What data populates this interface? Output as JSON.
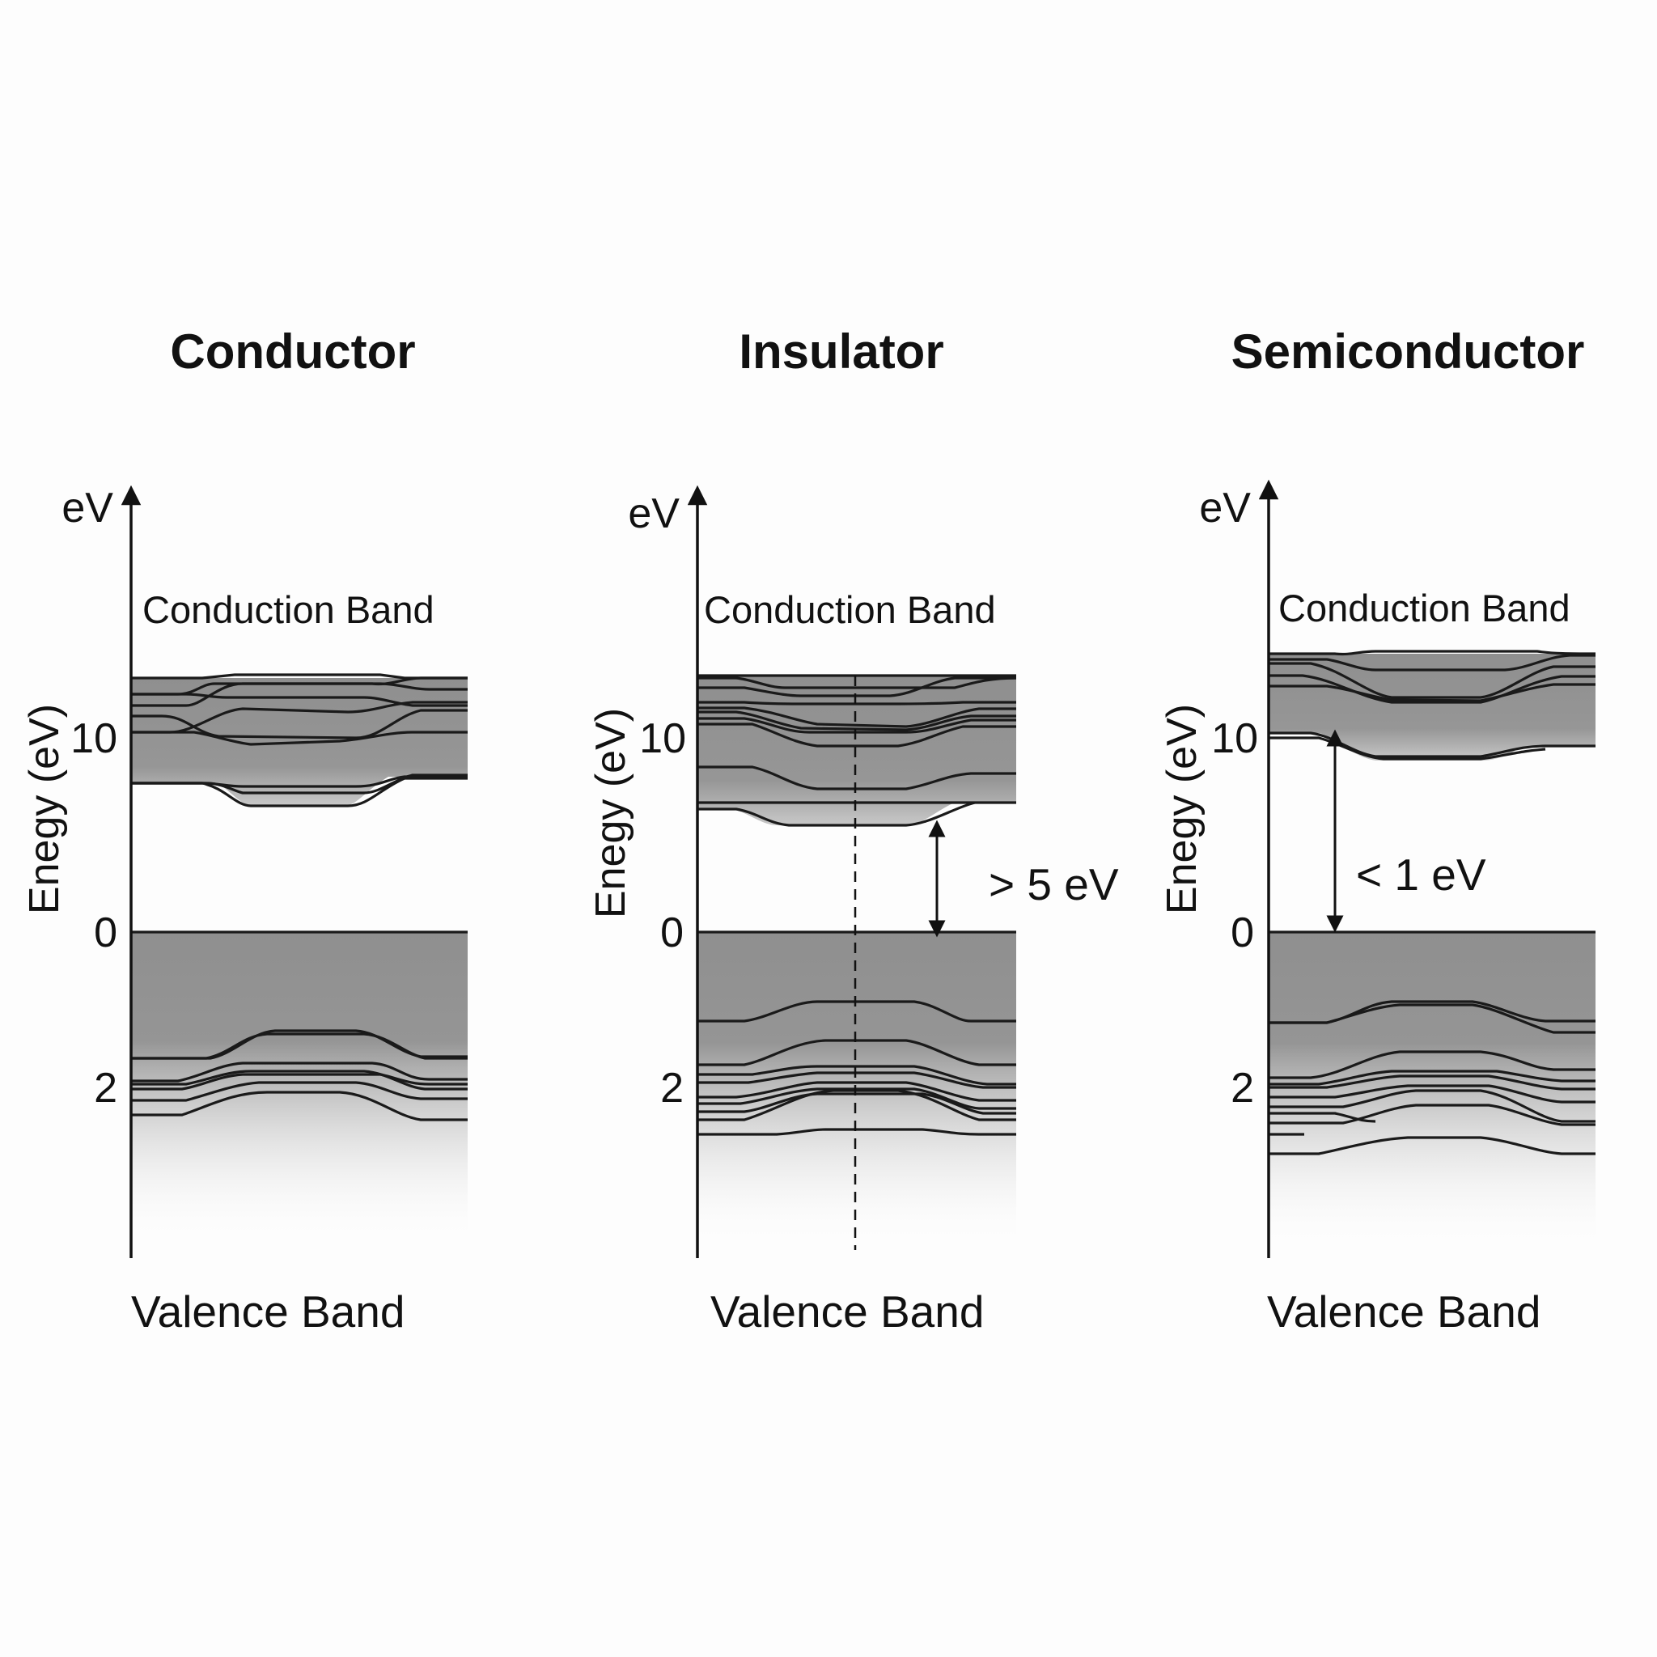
{
  "colors": {
    "band_fill": "#8f8f8f",
    "ink": "#111111",
    "background": "#fdfdfd"
  },
  "panels": [
    {
      "id": "conductor",
      "title": "Conductor",
      "axis_unit": "eV",
      "ylabel": "Enegy (eV)",
      "ticks": [
        {
          "label": "10",
          "value": 10
        },
        {
          "label": "0",
          "value": 0
        },
        {
          "label": "2",
          "value": 2
        }
      ],
      "conduction_label": "Conduction Band",
      "valence_label": "Valence Band",
      "gap": null,
      "symmetry_line": false
    },
    {
      "id": "insulator",
      "title": "Insulator",
      "axis_unit": "eV",
      "ylabel": "Enegy (eV)",
      "ticks": [
        {
          "label": "10",
          "value": 10
        },
        {
          "label": "0",
          "value": 0
        },
        {
          "label": "2",
          "value": 2
        }
      ],
      "conduction_label": "Conduction Band",
      "valence_label": "Valence Band",
      "gap": {
        "label": "> 5 eV"
      },
      "symmetry_line": true
    },
    {
      "id": "semiconductor",
      "title": "Semiconductor",
      "axis_unit": "eV",
      "ylabel": "Enegy (eV)",
      "ticks": [
        {
          "label": "10",
          "value": 10
        },
        {
          "label": "0",
          "value": 0
        },
        {
          "label": "2",
          "value": 2
        }
      ],
      "conduction_label": "Conduction Band",
      "valence_label": "Valence Band",
      "gap": {
        "label": "< 1 eV"
      },
      "symmetry_line": false
    }
  ]
}
